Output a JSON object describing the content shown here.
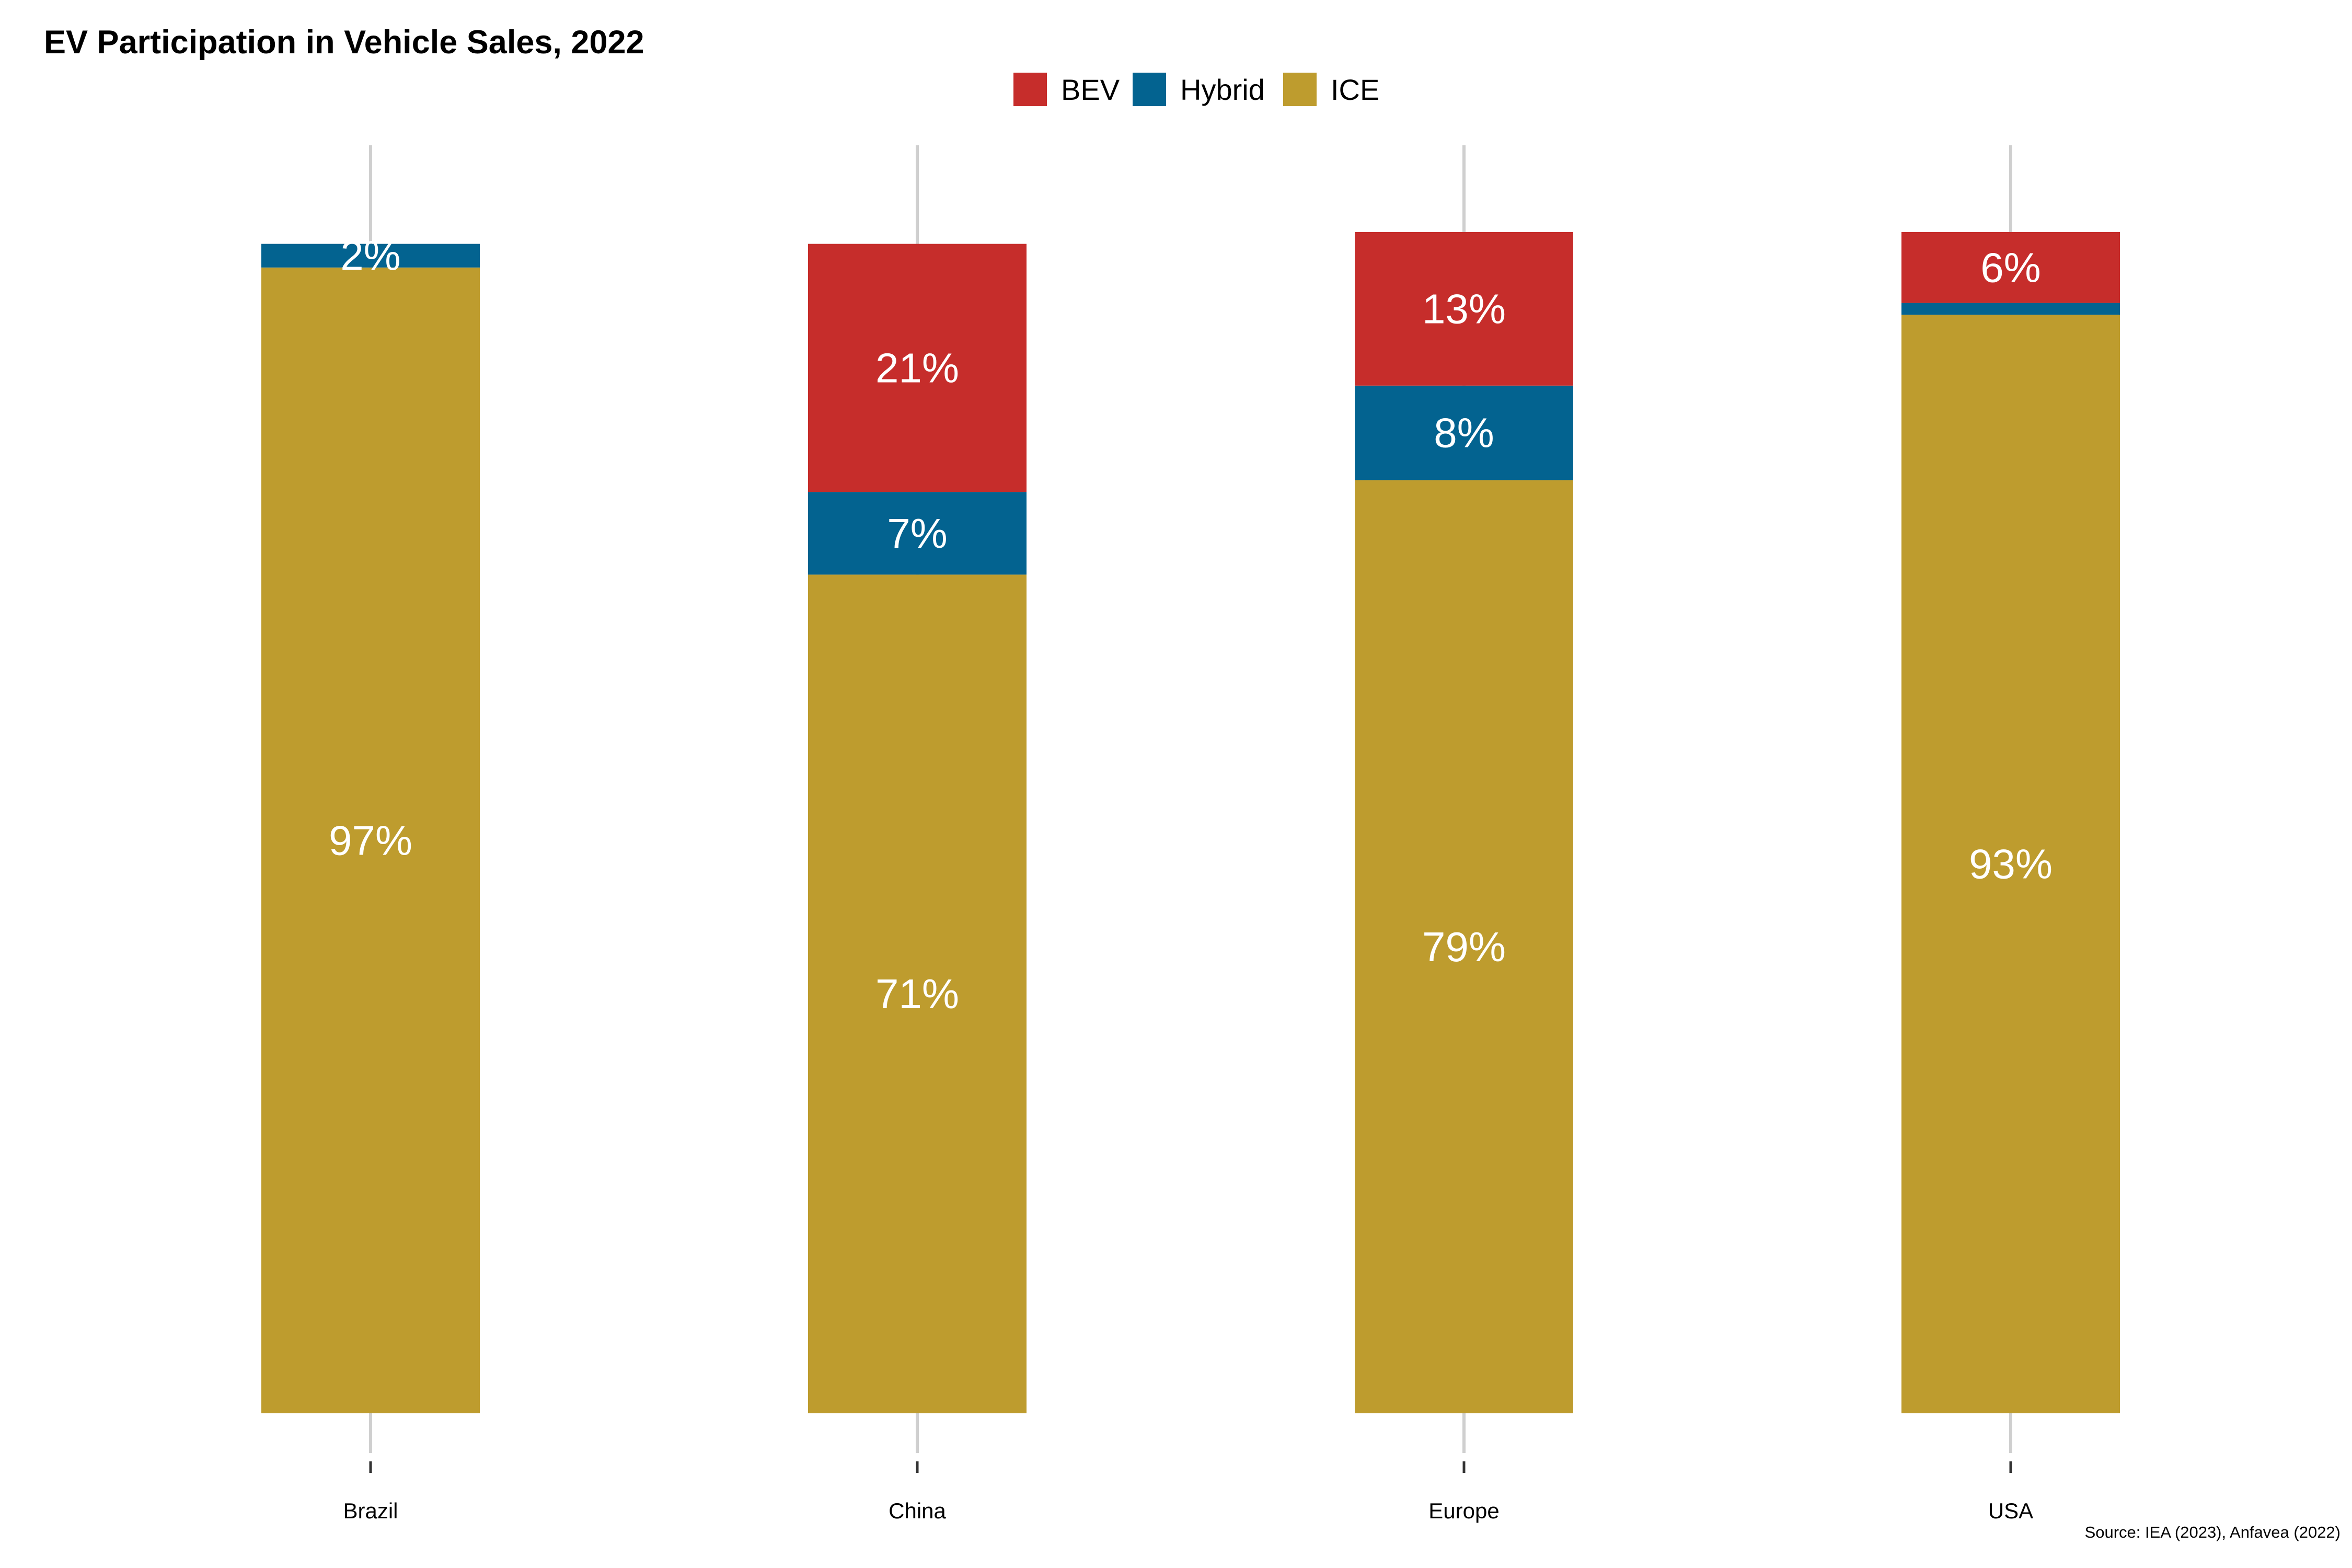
{
  "chart_data": {
    "type": "bar",
    "stacked": true,
    "title": "EV Participation in Vehicle Sales, 2022",
    "source": "Source: IEA (2023), Anfavea (2022)",
    "categories": [
      "Brazil",
      "China",
      "Europe",
      "USA"
    ],
    "legend_position": "top",
    "xlabel": "",
    "ylabel": "",
    "ylim": [
      0,
      100
    ],
    "grid": false,
    "series": [
      {
        "name": "BEV",
        "color": "#C62D2B",
        "values": [
          0,
          21,
          13,
          6
        ],
        "labels": [
          "",
          "21%",
          "13%",
          "6%"
        ]
      },
      {
        "name": "Hybrid",
        "color": "#036390",
        "values": [
          2,
          7,
          8,
          1
        ],
        "labels": [
          "2%",
          "7%",
          "8%",
          ""
        ]
      },
      {
        "name": "ICE",
        "color": "#BE9C2E",
        "values": [
          97,
          71,
          79,
          93
        ],
        "labels": [
          "97%",
          "71%",
          "79%",
          "93%"
        ]
      }
    ]
  }
}
